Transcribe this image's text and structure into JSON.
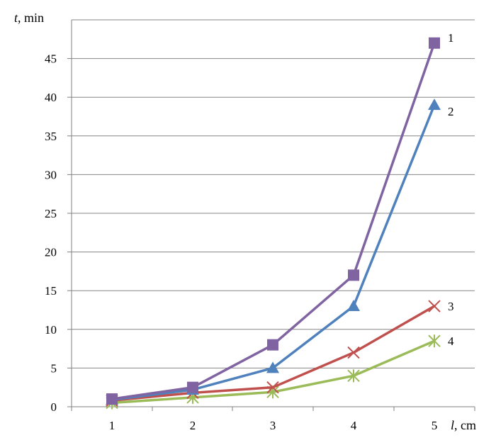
{
  "chart_data": {
    "type": "line",
    "y_axis_label": {
      "var": "t",
      "unit": ", min"
    },
    "x_axis_label": {
      "var": "l",
      "unit": ", cm"
    },
    "x": [
      1,
      2,
      3,
      4,
      5
    ],
    "xticks": [
      "1",
      "2",
      "3",
      "4",
      "5"
    ],
    "yticks": [
      "0",
      "5",
      "10",
      "15",
      "20",
      "25",
      "30",
      "35",
      "40",
      "45"
    ],
    "ylim": [
      0,
      50
    ],
    "grid": true,
    "series": [
      {
        "name": "1",
        "values": [
          1.0,
          2.5,
          8.0,
          17.0,
          47.0
        ],
        "color": "#8064a2",
        "marker": "square"
      },
      {
        "name": "2",
        "values": [
          0.9,
          2.2,
          5.0,
          13.0,
          39.0
        ],
        "color": "#4f81bd",
        "marker": "triangle"
      },
      {
        "name": "3",
        "values": [
          0.8,
          1.8,
          2.5,
          7.0,
          13.0
        ],
        "color": "#c0504d",
        "marker": "x"
      },
      {
        "name": "4",
        "values": [
          0.5,
          1.2,
          1.9,
          4.0,
          8.5
        ],
        "color": "#9bbb59",
        "marker": "star"
      }
    ]
  }
}
